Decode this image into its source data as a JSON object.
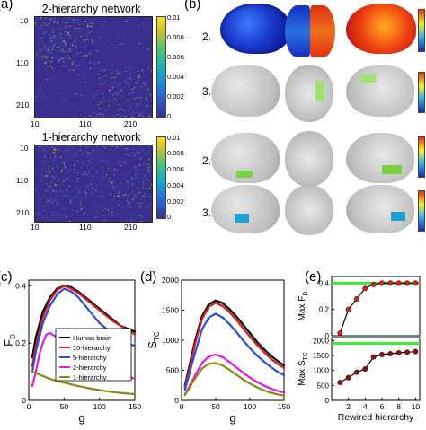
{
  "panel_a": {
    "label": "(a)",
    "top_title": "2-hierarchy network",
    "bottom_title": "1-hierarchy network",
    "y_ticks": [
      "10",
      "110",
      "210"
    ],
    "x_ticks": [
      "10",
      "110",
      "210"
    ],
    "top_cbar_ticks": [
      "0.01",
      "0.008",
      "0.006",
      "0.004",
      "0.002",
      "0"
    ],
    "bottom_cbar_ticks": [
      "0.01",
      "0.008",
      "0.006",
      "0.004",
      "0.002",
      "0"
    ]
  },
  "panel_b": {
    "label": "(b)",
    "row_labels": [
      "2.",
      "3.",
      "2.",
      "3."
    ]
  },
  "panel_c": {
    "label": "(c)",
    "xlabel": "g",
    "ylabel_main": "F",
    "ylabel_sub": "D",
    "chart_data": {
      "type": "line",
      "xlim": [
        0,
        150
      ],
      "ylim": [
        0,
        0.42
      ],
      "xticks": [
        "0",
        "50",
        "100",
        "150"
      ],
      "yticks": [
        "0",
        "0.2",
        "0.4"
      ],
      "legend_position": "center-right",
      "series": [
        {
          "name": "Human brain",
          "color": "#000000",
          "x": [
            5,
            10,
            20,
            30,
            40,
            50,
            60,
            70,
            80,
            90,
            100,
            110,
            120,
            130,
            140,
            150
          ],
          "y": [
            0.15,
            0.22,
            0.31,
            0.36,
            0.39,
            0.4,
            0.395,
            0.38,
            0.36,
            0.34,
            0.32,
            0.3,
            0.28,
            0.26,
            0.25,
            0.24
          ]
        },
        {
          "name": "10-hierarchy",
          "color": "#d62020",
          "x": [
            5,
            10,
            20,
            30,
            40,
            50,
            60,
            70,
            80,
            90,
            100,
            110,
            120,
            130,
            140,
            150
          ],
          "y": [
            0.12,
            0.19,
            0.29,
            0.35,
            0.385,
            0.4,
            0.39,
            0.375,
            0.355,
            0.335,
            0.315,
            0.295,
            0.275,
            0.26,
            0.245,
            0.23
          ]
        },
        {
          "name": "5-hierarchy",
          "color": "#2a4fd6",
          "x": [
            5,
            10,
            20,
            30,
            40,
            50,
            60,
            70,
            80,
            90,
            100,
            110,
            120,
            130,
            140,
            150
          ],
          "y": [
            0.1,
            0.17,
            0.27,
            0.33,
            0.37,
            0.39,
            0.38,
            0.36,
            0.33,
            0.3,
            0.27,
            0.25,
            0.23,
            0.215,
            0.2,
            0.19
          ]
        },
        {
          "name": "2-hierarchy",
          "color": "#e01ce0",
          "x": [
            5,
            10,
            15,
            20,
            25,
            30,
            40,
            50,
            60,
            70,
            80,
            90,
            100,
            110,
            120,
            130,
            140,
            150
          ],
          "y": [
            0.05,
            0.1,
            0.16,
            0.2,
            0.23,
            0.235,
            0.22,
            0.2,
            0.18,
            0.16,
            0.145,
            0.13,
            0.12,
            0.11,
            0.1,
            0.09,
            0.085,
            0.075
          ]
        },
        {
          "name": "1-hierarchy",
          "color": "#8a8a10",
          "x": [
            5,
            10,
            20,
            30,
            40,
            50,
            60,
            70,
            80,
            90,
            100,
            110,
            120,
            130,
            140,
            150
          ],
          "y": [
            0.1,
            0.095,
            0.085,
            0.075,
            0.068,
            0.062,
            0.056,
            0.05,
            0.045,
            0.04,
            0.036,
            0.032,
            0.029,
            0.026,
            0.024,
            0.022
          ]
        }
      ]
    }
  },
  "panel_d": {
    "label": "(d)",
    "xlabel": "g",
    "ylabel_main": "S",
    "ylabel_sub": "TC",
    "chart_data": {
      "type": "line",
      "xlim": [
        0,
        150
      ],
      "ylim": [
        0,
        2000
      ],
      "xticks": [
        "0",
        "50",
        "100",
        "150"
      ],
      "yticks": [
        "0",
        "500",
        "1000",
        "1500",
        "2000"
      ],
      "series": [
        {
          "name": "Human brain",
          "color": "#000000",
          "x": [
            5,
            10,
            20,
            30,
            40,
            50,
            60,
            70,
            80,
            90,
            100,
            110,
            120,
            130,
            140,
            150
          ],
          "y": [
            250,
            500,
            1000,
            1400,
            1600,
            1660,
            1620,
            1520,
            1400,
            1260,
            1120,
            980,
            860,
            750,
            660,
            580
          ]
        },
        {
          "name": "10-hierarchy",
          "color": "#d62020",
          "x": [
            5,
            10,
            20,
            30,
            40,
            50,
            60,
            70,
            80,
            90,
            100,
            110,
            120,
            130,
            140,
            150
          ],
          "y": [
            220,
            450,
            950,
            1350,
            1560,
            1620,
            1570,
            1470,
            1340,
            1200,
            1060,
            930,
            810,
            700,
            610,
            540
          ]
        },
        {
          "name": "5-hierarchy",
          "color": "#2a4fd6",
          "x": [
            5,
            10,
            20,
            30,
            40,
            50,
            60,
            70,
            80,
            90,
            100,
            110,
            120,
            130,
            140,
            150
          ],
          "y": [
            180,
            380,
            800,
            1180,
            1380,
            1440,
            1380,
            1270,
            1140,
            1000,
            870,
            750,
            650,
            560,
            480,
            420
          ]
        },
        {
          "name": "2-hierarchy",
          "color": "#e01ce0",
          "x": [
            5,
            10,
            20,
            30,
            40,
            50,
            60,
            70,
            80,
            90,
            100,
            110,
            120,
            130,
            140,
            150
          ],
          "y": [
            100,
            200,
            420,
            620,
            730,
            760,
            720,
            640,
            550,
            460,
            380,
            310,
            250,
            200,
            160,
            130
          ]
        },
        {
          "name": "1-hierarchy",
          "color": "#8a8a10",
          "x": [
            5,
            10,
            20,
            30,
            40,
            50,
            60,
            70,
            80,
            90,
            100,
            110,
            120,
            130,
            140,
            150
          ],
          "y": [
            90,
            180,
            370,
            530,
            610,
            620,
            580,
            510,
            430,
            350,
            280,
            220,
            170,
            130,
            100,
            80
          ]
        }
      ]
    }
  },
  "panel_e": {
    "label": "(e)",
    "xlabel": "Rewired hierarchy",
    "top_ylabel_main": "Max F",
    "top_ylabel_sub": "D",
    "bottom_ylabel_main": "Max S",
    "bottom_ylabel_sub": "TC",
    "chart_data": [
      {
        "type": "line",
        "xlim": [
          0,
          10.5
        ],
        "ylim": [
          0,
          0.45
        ],
        "yticks": [
          "0",
          "0.2",
          "0.4"
        ],
        "reference_line": {
          "y": 0.4,
          "color": "#33ee33"
        },
        "x": [
          1,
          2,
          3,
          4,
          5,
          6,
          7,
          8,
          9,
          10
        ],
        "y": [
          0.02,
          0.2,
          0.28,
          0.36,
          0.39,
          0.4,
          0.4,
          0.4,
          0.4,
          0.4
        ],
        "marker_color": "#d62020"
      },
      {
        "type": "line",
        "xlim": [
          0,
          10.5
        ],
        "ylim": [
          0,
          2100
        ],
        "yticks": [
          "0",
          "500",
          "1000",
          "1500",
          "2000"
        ],
        "xticks": [
          "2",
          "4",
          "6",
          "8",
          "10"
        ],
        "reference_line": {
          "y": 1900,
          "color": "#33ee33"
        },
        "x": [
          1,
          2,
          3,
          4,
          5,
          6,
          7,
          8,
          9,
          10
        ],
        "y": [
          600,
          760,
          940,
          1050,
          1450,
          1530,
          1560,
          1590,
          1610,
          1630
        ],
        "marker_color": "#8b1010"
      }
    ]
  }
}
